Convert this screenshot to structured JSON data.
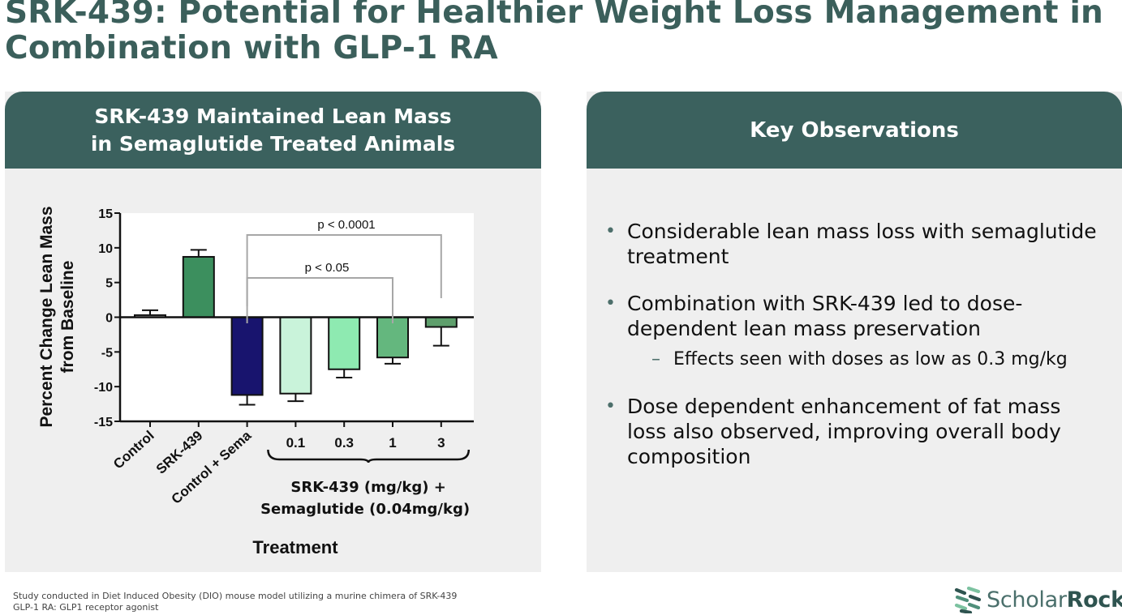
{
  "title": "SRK-439: Potential for Healthier Weight Loss Management in Combination with GLP-1 RA",
  "left_panel": {
    "header_line1": "SRK-439 Maintained Lean Mass",
    "header_line2": "in Semaglutide Treated Animals"
  },
  "right_panel": {
    "header": "Key Observations",
    "bullets": [
      {
        "text": "Considerable lean mass loss with semaglutide treatment"
      },
      {
        "text": "Combination with SRK-439 led to dose-dependent lean mass preservation",
        "sub": "Effects seen with doses as low as 0.3 mg/kg"
      },
      {
        "text": "Dose dependent enhancement of fat mass loss also observed, improving overall body composition"
      }
    ]
  },
  "chart_data": {
    "type": "bar",
    "categories": [
      "Control",
      "SRK-439",
      "Control + Sema",
      "0.1",
      "0.3",
      "1",
      "3"
    ],
    "values": [
      0.3,
      8.7,
      -11.2,
      -11.0,
      -7.5,
      -5.8,
      -1.4
    ],
    "errors": [
      0.7,
      1.0,
      1.4,
      1.1,
      1.2,
      0.9,
      2.7
    ],
    "bar_colors": [
      "#ffffff",
      "#3c8f5e",
      "#18146e",
      "#c9f3da",
      "#8eeab1",
      "#64b77e",
      "#5e9f6c"
    ],
    "ylabel_line1": "Percent Change Lean Mass",
    "ylabel_line2": "from Baseline",
    "xlabel": "Treatment",
    "ylim": [
      -15,
      15
    ],
    "yticks": [
      15,
      10,
      5,
      0,
      -5,
      -10,
      -15
    ],
    "group_label_line1": "SRK-439 (mg/kg) +",
    "group_label_line2": "Semaglutide (0.04mg/kg)",
    "annotations": [
      {
        "text": "p < 0.0001",
        "from": 2,
        "to": 6
      },
      {
        "text": "p < 0.05",
        "from": 2,
        "to": 5
      }
    ]
  },
  "footer": {
    "line1": "Study conducted in Diet Induced Obesity (DIO) mouse model utilizing a murine chimera of SRK-439",
    "line2": "GLP-1 RA: GLP1 receptor agonist"
  },
  "logo": {
    "part1": "Scholar",
    "part2": "Rock"
  }
}
